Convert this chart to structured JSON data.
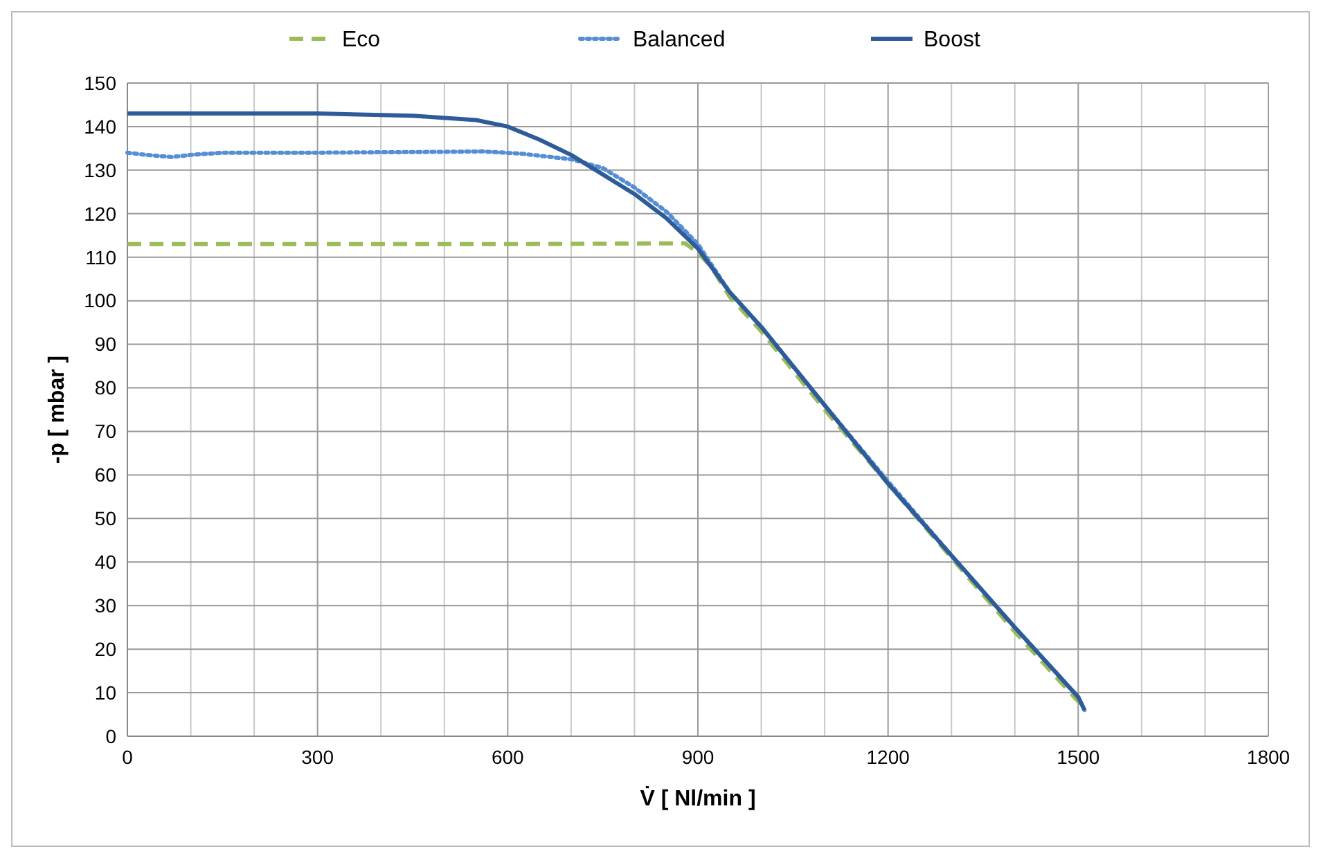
{
  "chart_data": {
    "type": "line",
    "xlabel": "V̇ [ Nl/min ]",
    "ylabel": "-p [ mbar ]",
    "xlim": [
      0,
      1800
    ],
    "ylim": [
      0,
      150
    ],
    "xticks": [
      0,
      {
        "value": 100,
        "label": null
      },
      {
        "value": 200,
        "label": null
      },
      300,
      {
        "value": 400,
        "label": null
      },
      {
        "value": 500,
        "label": null
      },
      600,
      {
        "value": 700,
        "label": null
      },
      {
        "value": 800,
        "label": null
      },
      900,
      {
        "value": 1000,
        "label": null
      },
      {
        "value": 1100,
        "label": null
      },
      1200,
      {
        "value": 1300,
        "label": null
      },
      {
        "value": 1400,
        "label": null
      },
      1500,
      {
        "value": 1600,
        "label": null
      },
      {
        "value": 1700,
        "label": null
      },
      1800
    ],
    "yticks": [
      0,
      10,
      20,
      30,
      40,
      50,
      60,
      70,
      80,
      90,
      100,
      110,
      120,
      130,
      140,
      150
    ],
    "grid": true,
    "legend": "top",
    "marker": "none",
    "series": [
      {
        "name": "Eco",
        "color": "#9bbb59",
        "line_style": "dashed",
        "x": [
          0,
          300,
          600,
          880,
          900,
          920,
          950,
          1000,
          1100,
          1200,
          1300,
          1400,
          1450,
          1500,
          1510
        ],
        "values": [
          113,
          113,
          113,
          113.2,
          111,
          108,
          101,
          93,
          75,
          58,
          41,
          24,
          16,
          8,
          6
        ]
      },
      {
        "name": "Balanced",
        "color": "#558ed5",
        "line_style": "dotted",
        "x": [
          0,
          30,
          70,
          100,
          150,
          300,
          500,
          560,
          620,
          700,
          750,
          800,
          850,
          900,
          950,
          1000,
          1100,
          1200,
          1300,
          1400,
          1500,
          1510
        ],
        "values": [
          134,
          133.5,
          133,
          133.5,
          134,
          134,
          134.2,
          134.3,
          133.8,
          132.5,
          130.5,
          126,
          120.5,
          113,
          102,
          94,
          76,
          58.5,
          41.5,
          25,
          9,
          6
        ]
      },
      {
        "name": "Boost",
        "color": "#2e5b9a",
        "line_style": "solid",
        "x": [
          0,
          300,
          450,
          550,
          600,
          650,
          700,
          750,
          800,
          850,
          900,
          950,
          1000,
          1100,
          1200,
          1300,
          1400,
          1500,
          1510
        ],
        "values": [
          143,
          143,
          142.5,
          141.5,
          140,
          137,
          133.5,
          129,
          124.5,
          119,
          112,
          102,
          94,
          76,
          58,
          41.5,
          25,
          9,
          6
        ]
      }
    ]
  }
}
